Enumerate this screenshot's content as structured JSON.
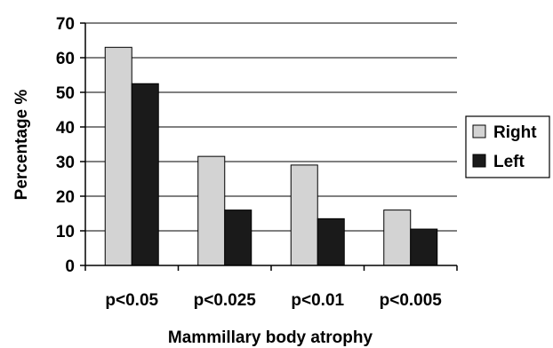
{
  "chart_data": {
    "type": "bar",
    "categories": [
      "p<0.05",
      "p<0.025",
      "p<0.01",
      "p<0.005"
    ],
    "series": [
      {
        "name": "Right",
        "values": [
          63,
          31.5,
          29,
          16
        ],
        "color": "#d3d3d3"
      },
      {
        "name": "Left",
        "values": [
          52.5,
          16,
          13.5,
          10.5
        ],
        "color": "#1a1a1a"
      }
    ],
    "xlabel": "Mammillary body atrophy",
    "ylabel": "Percentage %",
    "ylim": [
      0,
      70
    ],
    "yticks": [
      0,
      10,
      20,
      30,
      40,
      50,
      60,
      70
    ],
    "grid": true,
    "legend_position": "right"
  }
}
